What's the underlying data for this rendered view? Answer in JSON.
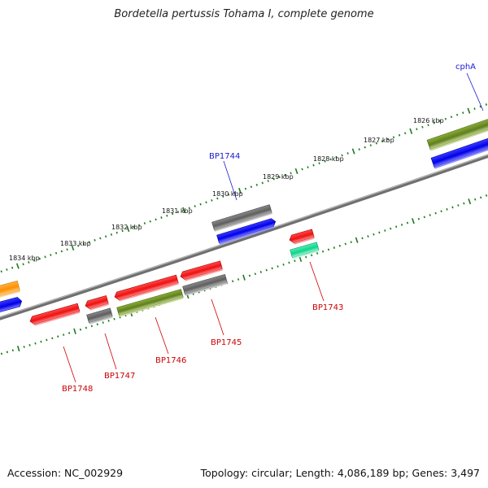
{
  "title": "Bordetella pertussis Tohama I, complete genome",
  "footer": {
    "accession": "Accession: NC_002929",
    "summary": "Topology: circular; Length: 4,086,189 bp; Genes: 3,497"
  },
  "kbp_labels": [
    "1834 kbp",
    "1833 kbp",
    "1832 kbp",
    "1831 kbp",
    "1830 kbp",
    "1829 kbp",
    "1828 kbp",
    "1827 kbp",
    "1826 kbp"
  ],
  "gene_labels": {
    "cphA": "cphA",
    "BP1744": "BP1744",
    "BP1743": "BP1743",
    "BP1745": "BP1745",
    "BP1746": "BP1746",
    "BP1747": "BP1747",
    "BP1748": "BP1748"
  },
  "colors": {
    "backbone": "#7a7a7a",
    "tick": "#1e7a1e",
    "red": "#ee1111",
    "gray": "#666666",
    "olive": "#6b8e23",
    "blue": "#0b0bee",
    "orange": "#ff9900",
    "teal": "#22dd99",
    "label_red": "#cc0000",
    "label_blue": "#1a1acc"
  }
}
